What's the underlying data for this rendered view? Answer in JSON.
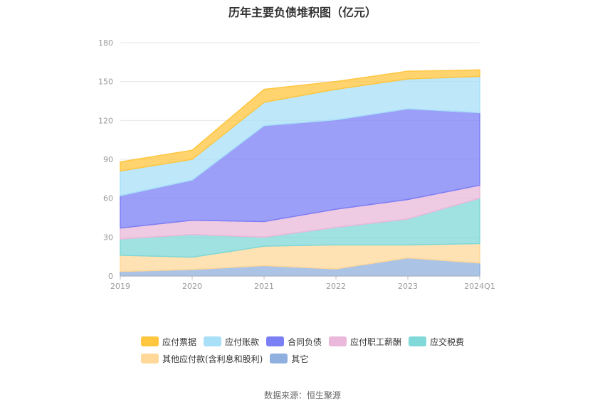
{
  "title": "历年主要负债堆积图（亿元）",
  "source": "数据来源：恒生聚源",
  "chart_data": {
    "type": "area",
    "stacked": true,
    "title": "历年主要负债堆积图（亿元）",
    "categories": [
      "2019",
      "2020",
      "2021",
      "2022",
      "2023",
      "2024Q1"
    ],
    "ylim": [
      0,
      180
    ],
    "yticks": [
      0,
      30,
      60,
      90,
      120,
      150,
      180
    ],
    "grid": true,
    "legend_position": "bottom",
    "series": [
      {
        "name": "其它",
        "color": "#8fb0de",
        "values": [
          3.5,
          5,
          8,
          5.5,
          14,
          10
        ]
      },
      {
        "name": "其他应付款(含利息和股利)",
        "color": "#ffd89a",
        "values": [
          12.5,
          9.5,
          15,
          18.5,
          10,
          15
        ]
      },
      {
        "name": "应交税费",
        "color": "#80d8d8",
        "values": [
          12.5,
          17.5,
          7,
          13.5,
          20,
          35
        ]
      },
      {
        "name": "应付职工薪酬",
        "color": "#eab8da",
        "values": [
          8.5,
          11,
          12,
          14,
          15,
          10
        ]
      },
      {
        "name": "合同负债",
        "color": "#7b7ff5",
        "values": [
          25,
          31,
          74,
          69,
          70,
          56
        ]
      },
      {
        "name": "应付账款",
        "color": "#a8e0f8",
        "values": [
          19,
          16,
          18,
          23.5,
          23,
          28
        ]
      },
      {
        "name": "应付票据",
        "color": "#ffc63e",
        "values": [
          7,
          7,
          10,
          6,
          6,
          5
        ]
      }
    ],
    "legend_order": [
      "应付票据",
      "应付账款",
      "合同负债",
      "应付职工薪酬",
      "应交税费",
      "其他应付款(含利息和股利)",
      "其它"
    ]
  }
}
